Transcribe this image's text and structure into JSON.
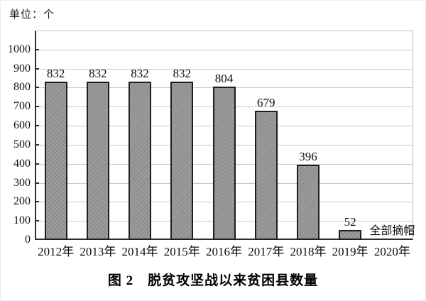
{
  "figure": {
    "unit_label": "单位：个",
    "caption": "图 2　脱贫攻坚战以来贫困县数量",
    "annotation_label": "全部摘帽"
  },
  "chart_data": {
    "type": "bar",
    "title": "图 2　脱贫攻坚战以来贫困县数量",
    "unit": "单位：个",
    "categories": [
      "2012年",
      "2013年",
      "2014年",
      "2015年",
      "2016年",
      "2017年",
      "2018年",
      "2019年",
      "2020年"
    ],
    "values": [
      832,
      832,
      832,
      832,
      804,
      679,
      396,
      52,
      null
    ],
    "bar_labels": [
      "832",
      "832",
      "832",
      "832",
      "804",
      "679",
      "396",
      "52",
      ""
    ],
    "annotations": [
      {
        "text": "全部摘帽",
        "category": "2020年"
      }
    ],
    "yticks": [
      0,
      100,
      200,
      300,
      400,
      500,
      600,
      700,
      800,
      900,
      1000
    ],
    "ylim": [
      0,
      1100
    ],
    "grid": true,
    "legend_position": "none",
    "xlabel": "",
    "ylabel": "",
    "bar_fill_color": "#8f8f8f",
    "bar_hatch": "diagonal-forward",
    "bar_border_color": "#1f1f1f",
    "gridline_color": "#c9c9c9",
    "axis_color": "#2e2e2e"
  }
}
